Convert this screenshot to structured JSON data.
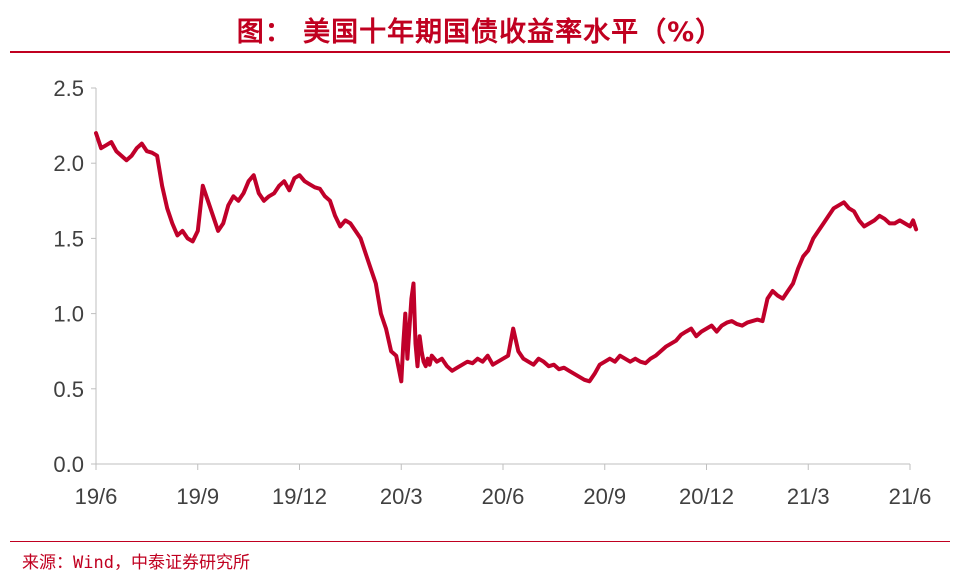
{
  "header": {
    "title": "图：  美国十年期国债收益率水平（%）"
  },
  "footer": {
    "source": "来源：Wind，中泰证券研究所"
  },
  "colors": {
    "accent": "#c00020",
    "line": "#c0002a",
    "axis": "#bfbfbf",
    "tick_text": "#404040"
  },
  "chart_data": {
    "type": "line",
    "title": "美国十年期国债收益率水平（%）",
    "xlabel": "",
    "ylabel": "",
    "ylim": [
      0,
      2.5
    ],
    "yticks": [
      "0.0",
      "0.5",
      "1.0",
      "1.5",
      "2.0",
      "2.5"
    ],
    "xticks": [
      "19/6",
      "19/9",
      "19/12",
      "20/3",
      "20/6",
      "20/9",
      "20/12",
      "21/3",
      "21/6"
    ],
    "grid": false,
    "legend": "none",
    "series": [
      {
        "x": [
          0,
          0.05,
          0.1,
          0.15,
          0.2,
          0.25,
          0.3,
          0.35,
          0.4,
          0.45,
          0.5,
          0.55,
          0.6,
          0.65,
          0.7,
          0.75,
          0.8,
          0.85,
          0.9,
          0.95,
          1.0,
          1.05,
          1.1,
          1.15,
          1.2,
          1.25,
          1.3,
          1.35,
          1.4,
          1.45,
          1.5,
          1.55,
          1.6,
          1.65,
          1.7,
          1.75,
          1.8,
          1.85,
          1.9,
          1.95,
          2.0,
          2.05,
          2.1,
          2.15,
          2.2,
          2.25,
          2.3,
          2.35,
          2.4,
          2.45,
          2.5,
          2.55,
          2.6,
          2.65,
          2.7,
          2.75,
          2.8,
          2.85,
          2.9,
          2.95,
          3.0,
          3.02,
          3.04,
          3.06,
          3.08,
          3.1,
          3.12,
          3.14,
          3.16,
          3.18,
          3.2,
          3.22,
          3.24,
          3.26,
          3.28,
          3.3,
          3.35,
          3.4,
          3.45,
          3.5,
          3.55,
          3.6,
          3.65,
          3.7,
          3.75,
          3.8,
          3.85,
          3.9,
          3.95,
          4.0,
          4.05,
          4.1,
          4.15,
          4.2,
          4.25,
          4.3,
          4.35,
          4.4,
          4.45,
          4.5,
          4.55,
          4.6,
          4.65,
          4.7,
          4.75,
          4.8,
          4.85,
          4.9,
          4.95,
          5.0,
          5.05,
          5.1,
          5.15,
          5.2,
          5.25,
          5.3,
          5.35,
          5.4,
          5.45,
          5.5,
          5.55,
          5.6,
          5.65,
          5.7,
          5.75,
          5.8,
          5.85,
          5.9,
          5.95,
          6.0,
          6.05,
          6.1,
          6.15,
          6.2,
          6.25,
          6.3,
          6.35,
          6.4,
          6.45,
          6.5,
          6.55,
          6.6,
          6.65,
          6.7,
          6.75,
          6.8,
          6.85,
          6.9,
          6.95,
          7.0,
          7.05,
          7.1,
          7.15,
          7.2,
          7.25,
          7.3,
          7.35,
          7.4,
          7.45,
          7.5,
          7.55,
          7.6,
          7.65,
          7.7,
          7.75,
          7.8,
          7.85,
          7.9,
          7.95,
          8.0,
          8.03,
          8.06
        ],
        "values": [
          2.2,
          2.1,
          2.12,
          2.14,
          2.08,
          2.05,
          2.02,
          2.05,
          2.1,
          2.13,
          2.08,
          2.07,
          2.05,
          1.85,
          1.7,
          1.6,
          1.52,
          1.55,
          1.5,
          1.48,
          1.55,
          1.85,
          1.75,
          1.65,
          1.55,
          1.6,
          1.72,
          1.78,
          1.75,
          1.8,
          1.88,
          1.92,
          1.8,
          1.75,
          1.78,
          1.8,
          1.85,
          1.88,
          1.82,
          1.9,
          1.92,
          1.88,
          1.86,
          1.84,
          1.83,
          1.78,
          1.75,
          1.65,
          1.58,
          1.62,
          1.6,
          1.55,
          1.5,
          1.4,
          1.3,
          1.2,
          1.0,
          0.9,
          0.75,
          0.72,
          0.55,
          0.8,
          1.0,
          0.7,
          0.9,
          1.1,
          1.2,
          0.8,
          0.65,
          0.85,
          0.75,
          0.68,
          0.65,
          0.7,
          0.66,
          0.72,
          0.68,
          0.7,
          0.65,
          0.62,
          0.64,
          0.66,
          0.68,
          0.67,
          0.7,
          0.68,
          0.72,
          0.66,
          0.68,
          0.7,
          0.72,
          0.9,
          0.75,
          0.7,
          0.68,
          0.66,
          0.7,
          0.68,
          0.65,
          0.66,
          0.63,
          0.64,
          0.62,
          0.6,
          0.58,
          0.56,
          0.55,
          0.6,
          0.66,
          0.68,
          0.7,
          0.68,
          0.72,
          0.7,
          0.68,
          0.7,
          0.68,
          0.67,
          0.7,
          0.72,
          0.75,
          0.78,
          0.8,
          0.82,
          0.86,
          0.88,
          0.9,
          0.85,
          0.88,
          0.9,
          0.92,
          0.88,
          0.92,
          0.94,
          0.95,
          0.93,
          0.92,
          0.94,
          0.95,
          0.96,
          0.95,
          1.1,
          1.15,
          1.12,
          1.1,
          1.15,
          1.2,
          1.3,
          1.38,
          1.42,
          1.5,
          1.55,
          1.6,
          1.65,
          1.7,
          1.72,
          1.74,
          1.7,
          1.68,
          1.62,
          1.58,
          1.6,
          1.62,
          1.65,
          1.63,
          1.6,
          1.6,
          1.62,
          1.6,
          1.58,
          1.62,
          1.56
        ]
      }
    ]
  }
}
